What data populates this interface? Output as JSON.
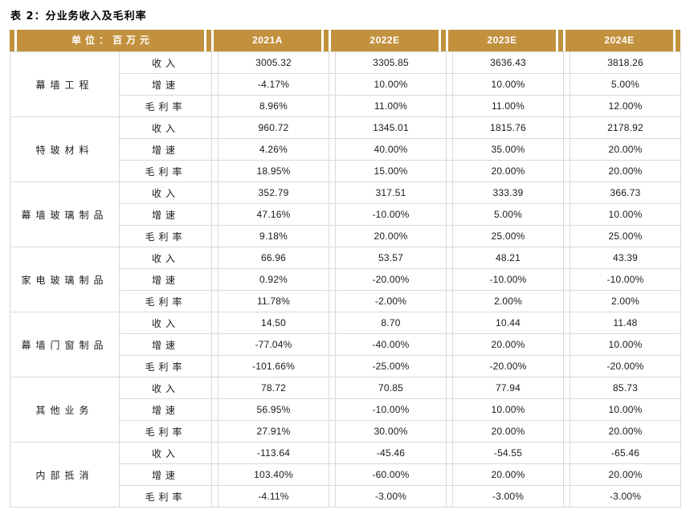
{
  "title": "表 2：分业务收入及毛利率",
  "colors": {
    "header_bg": "#C2913E",
    "header_text": "#FFFFFF",
    "border": "#D9D9D9",
    "text": "#1A1A1A"
  },
  "table": {
    "unit_header": "单位：百万元",
    "year_headers": [
      "2021A",
      "2022E",
      "2023E",
      "2024E"
    ],
    "metric_labels": [
      "收入",
      "增速",
      "毛利率"
    ],
    "groups": [
      {
        "name": "幕墙工程",
        "rows": [
          {
            "metric": "收入",
            "values": [
              "3005.32",
              "3305.85",
              "3636.43",
              "3818.26"
            ]
          },
          {
            "metric": "增速",
            "values": [
              "-4.17%",
              "10.00%",
              "10.00%",
              "5.00%"
            ]
          },
          {
            "metric": "毛利率",
            "values": [
              "8.96%",
              "11.00%",
              "11.00%",
              "12.00%"
            ]
          }
        ]
      },
      {
        "name": "特玻材料",
        "rows": [
          {
            "metric": "收入",
            "values": [
              "960.72",
              "1345.01",
              "1815.76",
              "2178.92"
            ]
          },
          {
            "metric": "增速",
            "values": [
              "4.26%",
              "40.00%",
              "35.00%",
              "20.00%"
            ]
          },
          {
            "metric": "毛利率",
            "values": [
              "18.95%",
              "15.00%",
              "20.00%",
              "20.00%"
            ]
          }
        ]
      },
      {
        "name": "幕墙玻璃制品",
        "rows": [
          {
            "metric": "收入",
            "values": [
              "352.79",
              "317.51",
              "333.39",
              "366.73"
            ]
          },
          {
            "metric": "增速",
            "values": [
              "47.16%",
              "-10.00%",
              "5.00%",
              "10.00%"
            ]
          },
          {
            "metric": "毛利率",
            "values": [
              "9.18%",
              "20.00%",
              "25.00%",
              "25.00%"
            ]
          }
        ]
      },
      {
        "name": "家电玻璃制品",
        "rows": [
          {
            "metric": "收入",
            "values": [
              "66.96",
              "53.57",
              "48.21",
              "43.39"
            ]
          },
          {
            "metric": "增速",
            "values": [
              "0.92%",
              "-20.00%",
              "-10.00%",
              "-10.00%"
            ]
          },
          {
            "metric": "毛利率",
            "values": [
              "11.78%",
              "-2.00%",
              "2.00%",
              "2.00%"
            ]
          }
        ]
      },
      {
        "name": "幕墙门窗制品",
        "rows": [
          {
            "metric": "收入",
            "values": [
              "14.50",
              "8.70",
              "10.44",
              "11.48"
            ]
          },
          {
            "metric": "增速",
            "values": [
              "-77.04%",
              "-40.00%",
              "20.00%",
              "10.00%"
            ]
          },
          {
            "metric": "毛利率",
            "values": [
              "-101.66%",
              "-25.00%",
              "-20.00%",
              "-20.00%"
            ]
          }
        ]
      },
      {
        "name": "其他业务",
        "rows": [
          {
            "metric": "收入",
            "values": [
              "78.72",
              "70.85",
              "77.94",
              "85.73"
            ]
          },
          {
            "metric": "增速",
            "values": [
              "56.95%",
              "-10.00%",
              "10.00%",
              "10.00%"
            ]
          },
          {
            "metric": "毛利率",
            "values": [
              "27.91%",
              "30.00%",
              "20.00%",
              "20.00%"
            ]
          }
        ]
      },
      {
        "name": "内部抵消",
        "rows": [
          {
            "metric": "收入",
            "values": [
              "-113.64",
              "-45.46",
              "-54.55",
              "-65.46"
            ]
          },
          {
            "metric": "增速",
            "values": [
              "103.40%",
              "-60.00%",
              "20.00%",
              "20.00%"
            ]
          },
          {
            "metric": "毛利率",
            "values": [
              "-4.11%",
              "-3.00%",
              "-3.00%",
              "-3.00%"
            ]
          }
        ]
      }
    ]
  }
}
